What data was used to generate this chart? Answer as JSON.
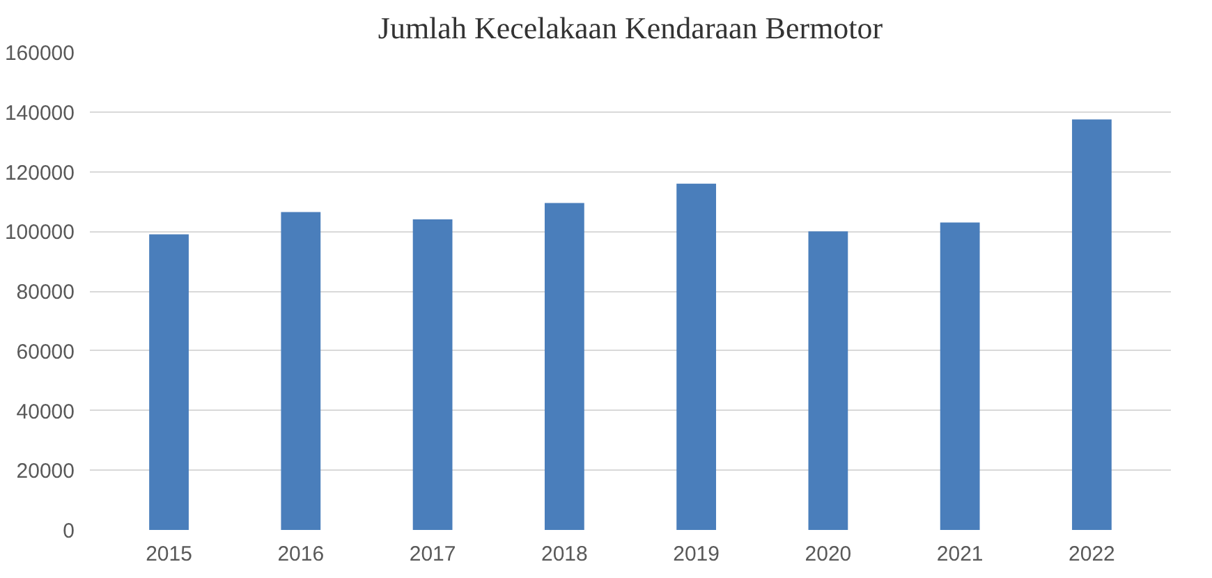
{
  "chart_data": {
    "type": "bar",
    "title": "Jumlah Kecelakaan Kendaraan Bermotor",
    "categories": [
      "2015",
      "2016",
      "2017",
      "2018",
      "2019",
      "2020",
      "2021",
      "2022"
    ],
    "values": [
      99000,
      106500,
      104000,
      109500,
      116000,
      100000,
      103000,
      137500
    ],
    "color": "#4a7ebb",
    "ylim": [
      0,
      160000
    ],
    "yticks": [
      0,
      20000,
      40000,
      60000,
      80000,
      100000,
      120000,
      140000,
      160000
    ],
    "grid": "y"
  }
}
